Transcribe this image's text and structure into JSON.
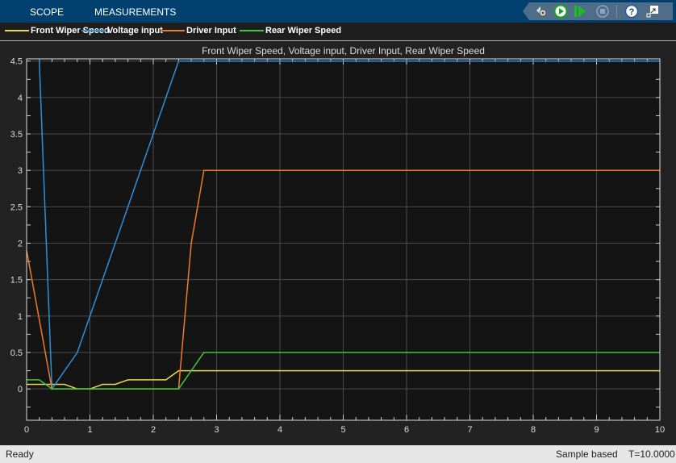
{
  "toolbar": {
    "tabs": [
      "SCOPE",
      "MEASUREMENTS"
    ],
    "buttons": [
      {
        "icon": "highlight-settings-icon"
      },
      {
        "icon": "run-icon"
      },
      {
        "icon": "step-forward-icon"
      },
      {
        "icon": "stop-icon"
      },
      {
        "icon": "help-icon"
      },
      {
        "icon": "undock-icon"
      }
    ]
  },
  "legend": [
    {
      "name": "Front Wiper Speed",
      "color": "#edd84b"
    },
    {
      "name": "Voltage input",
      "color": "#2f8fd8"
    },
    {
      "name": "Driver Input",
      "color": "#f07a2a"
    },
    {
      "name": "Rear Wiper Speed",
      "color": "#3fc83a"
    }
  ],
  "chart_data": {
    "type": "line",
    "title": "Front Wiper Speed, Voltage input, Driver Input, Rear Wiper Speed",
    "xlim": [
      0,
      10
    ],
    "ylim": [
      -0.43,
      4.53
    ],
    "xticks": [
      0,
      1,
      2,
      3,
      4,
      5,
      6,
      7,
      8,
      9,
      10
    ],
    "yticks": [
      0,
      0.5,
      1,
      1.5,
      2,
      2.5,
      3,
      3.5,
      4,
      4.5
    ],
    "grid": true,
    "series": [
      {
        "name": "Front Wiper Speed",
        "color": "#edd84b",
        "points": [
          [
            0,
            0.0625
          ],
          [
            0.6,
            0.0625
          ],
          [
            0.8,
            0
          ],
          [
            1.0,
            0
          ],
          [
            1.2,
            0.0625
          ],
          [
            1.4,
            0.0625
          ],
          [
            1.6,
            0.125
          ],
          [
            2.2,
            0.125
          ],
          [
            2.4,
            0.25
          ],
          [
            10,
            0.25
          ]
        ]
      },
      {
        "name": "Voltage input",
        "color": "#2f8fd8",
        "points": [
          [
            0,
            9
          ],
          [
            0.2,
            4.5
          ],
          [
            0.4,
            0
          ],
          [
            0.8,
            0.5
          ],
          [
            2.4,
            4.5
          ],
          [
            10,
            4.5
          ]
        ]
      },
      {
        "name": "Driver Input",
        "color": "#f07a2a",
        "points": [
          [
            0,
            1.9
          ],
          [
            0.4,
            0
          ],
          [
            2.4,
            0
          ],
          [
            2.6,
            2
          ],
          [
            2.8,
            3
          ],
          [
            10,
            3
          ]
        ]
      },
      {
        "name": "Rear Wiper Speed",
        "color": "#3fc83a",
        "points": [
          [
            0,
            0.125
          ],
          [
            0.2,
            0.125
          ],
          [
            0.4,
            0
          ],
          [
            2.4,
            0
          ],
          [
            2.8,
            0.5
          ],
          [
            10,
            0.5
          ]
        ]
      }
    ]
  },
  "status": {
    "left": "Ready",
    "mode": "Sample based",
    "time": "T=10.0000"
  }
}
